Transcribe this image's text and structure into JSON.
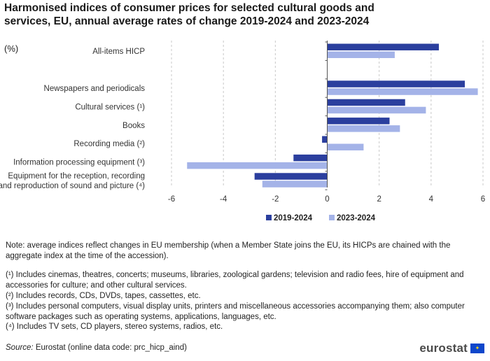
{
  "chart_data": {
    "type": "bar",
    "orientation": "horizontal",
    "title": "Harmonised indices of consumer prices for selected cultural goods and services, EU, annual average rates of change 2019-2024 and 2023-2024",
    "unit": "(%)",
    "categories": [
      [
        "All-items HICP"
      ],
      [
        ""
      ],
      [
        "Newspapers and periodicals"
      ],
      [
        "Cultural services (¹)"
      ],
      [
        "Books"
      ],
      [
        "Recording media (²)"
      ],
      [
        "Information processing equipment (³)"
      ],
      [
        "Equipment for the reception, recording",
        "and reproduction of sound and picture (⁴)"
      ]
    ],
    "series": [
      {
        "name": "2019-2024",
        "color": "#2b3f9e",
        "values": [
          4.3,
          null,
          5.3,
          3.0,
          2.4,
          -0.2,
          -1.3,
          -2.8
        ]
      },
      {
        "name": "2023-2024",
        "color": "#a4b3e8",
        "values": [
          2.6,
          null,
          5.8,
          3.8,
          2.8,
          1.4,
          -5.4,
          -2.5
        ]
      }
    ],
    "xlim": [
      -6,
      6
    ],
    "xticks": [
      -6,
      -4,
      -2,
      0,
      2,
      4,
      6
    ],
    "grid": true
  },
  "notes": {
    "main": "Note: average indices reflect changes in EU membership (when a Member State joins the EU, its HICPs are chained with the aggregate index at the time of the accession).",
    "fn1": "(¹) Includes cinemas, theatres, concerts; museums, libraries, zoological gardens; television and radio fees, hire of equipment and accessories for culture; and other cultural services.",
    "fn2": "(²) Includes records, CDs, DVDs, tapes, cassettes, etc.",
    "fn3": "(³) Includes personal computers, visual display units, printers and miscellaneous accessories accompanying them; also computer software packages such as operating systems, applications, languages, etc.",
    "fn4": "(⁴) Includes TV sets, CD players, stereo systems, radios, etc."
  },
  "source": {
    "label": "Source:",
    "text": "Eurostat (online data code: prc_hicp_aind)"
  },
  "logo": {
    "text": "eurostat",
    "flag_icon": "eu-flag-icon"
  }
}
